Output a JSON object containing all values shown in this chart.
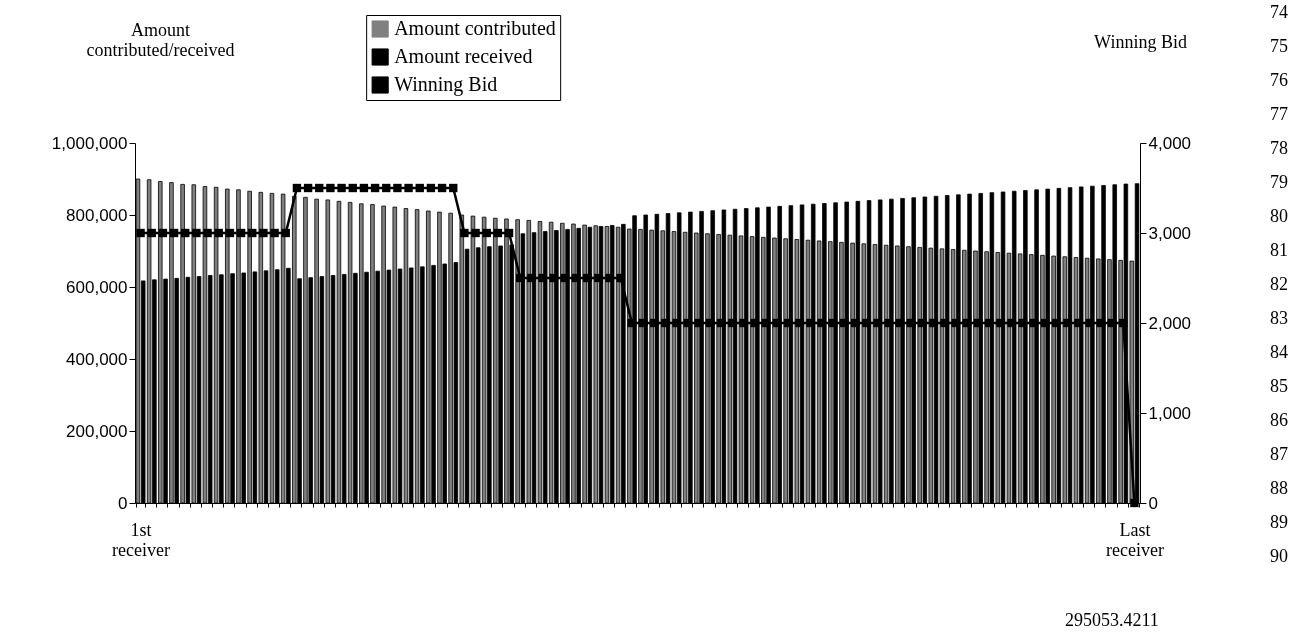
{
  "chart_data": {
    "type": "bar",
    "ylabel": "Amount contributed/received",
    "y2label": "Winning Bid",
    "categories": [
      "1st receiver",
      null,
      null,
      null,
      null,
      null,
      null,
      null,
      null,
      null,
      null,
      null,
      null,
      null,
      null,
      null,
      null,
      null,
      null,
      null,
      null,
      null,
      null,
      null,
      null,
      null,
      null,
      null,
      null,
      null,
      null,
      null,
      null,
      null,
      null,
      null,
      null,
      null,
      null,
      null,
      null,
      null,
      null,
      null,
      null,
      null,
      null,
      null,
      null,
      null,
      null,
      null,
      null,
      null,
      null,
      null,
      null,
      null,
      null,
      null,
      null,
      null,
      null,
      null,
      null,
      null,
      null,
      null,
      null,
      null,
      null,
      null,
      null,
      null,
      null,
      null,
      null,
      null,
      null,
      null,
      null,
      null,
      null,
      null,
      null,
      null,
      null,
      null,
      null,
      "Last receiver"
    ],
    "series": [
      {
        "name": "Amount contributed",
        "color": "#808080",
        "values": [
          900000,
          898000,
          893000,
          890000,
          885000,
          884000,
          879000,
          877000,
          872000,
          870000,
          866000,
          863000,
          860000,
          858000,
          852000,
          849000,
          844000,
          842000,
          838000,
          835000,
          831000,
          829000,
          825000,
          822000,
          818000,
          815000,
          811000,
          808000,
          805000,
          800000,
          797000,
          794000,
          791000,
          789000,
          787000,
          785000,
          782000,
          780000,
          777000,
          775000,
          772000,
          770000,
          768000,
          766000,
          761000,
          760000,
          758000,
          756000,
          754000,
          752000,
          750000,
          748000,
          746000,
          744000,
          742000,
          740000,
          738000,
          736000,
          734000,
          732000,
          730000,
          728000,
          726000,
          724000,
          722000,
          720000,
          718000,
          716000,
          714000,
          712000,
          710000,
          708000,
          706000,
          704000,
          702000,
          700000,
          698000,
          696000,
          694000,
          692000,
          690000,
          688000,
          686000,
          684000,
          682000,
          680000,
          678000,
          676000,
          674000,
          672000
        ]
      },
      {
        "name": "Amount received",
        "color": "#000000",
        "values": [
          617000,
          620000,
          622000,
          624000,
          627000,
          629000,
          632000,
          634000,
          637000,
          639000,
          642000,
          645000,
          648000,
          652000,
          623000,
          626000,
          629000,
          632000,
          635000,
          638000,
          641000,
          644000,
          647000,
          650000,
          653000,
          656000,
          660000,
          664000,
          668000,
          705000,
          709000,
          712000,
          714000,
          717000,
          748000,
          751000,
          754000,
          757000,
          760000,
          763000,
          766000,
          768000,
          771000,
          774000,
          798000,
          800000,
          802000,
          804000,
          806000,
          808000,
          810000,
          812000,
          814000,
          816000,
          818000,
          820000,
          822000,
          824000,
          826000,
          828000,
          830000,
          832000,
          834000,
          836000,
          838000,
          840000,
          842000,
          844000,
          846000,
          848000,
          850000,
          852000,
          854000,
          856000,
          858000,
          860000,
          862000,
          864000,
          866000,
          868000,
          870000,
          872000,
          874000,
          876000,
          878000,
          880000,
          882000,
          884000,
          886000,
          887000
        ]
      },
      {
        "name": "Winning Bid",
        "type": "line",
        "axis": "y2",
        "color": "#000000",
        "values": [
          3000,
          3000,
          3000,
          3000,
          3000,
          3000,
          3000,
          3000,
          3000,
          3000,
          3000,
          3000,
          3000,
          3000,
          3500,
          3500,
          3500,
          3500,
          3500,
          3500,
          3500,
          3500,
          3500,
          3500,
          3500,
          3500,
          3500,
          3500,
          3500,
          3000,
          3000,
          3000,
          3000,
          3000,
          2500,
          2500,
          2500,
          2500,
          2500,
          2500,
          2500,
          2500,
          2500,
          2500,
          2000,
          2000,
          2000,
          2000,
          2000,
          2000,
          2000,
          2000,
          2000,
          2000,
          2000,
          2000,
          2000,
          2000,
          2000,
          2000,
          2000,
          2000,
          2000,
          2000,
          2000,
          2000,
          2000,
          2000,
          2000,
          2000,
          2000,
          2000,
          2000,
          2000,
          2000,
          2000,
          2000,
          2000,
          2000,
          2000,
          2000,
          2000,
          2000,
          2000,
          2000,
          2000,
          2000,
          2000,
          2000,
          0
        ]
      }
    ],
    "ylim": [
      0,
      1000000
    ],
    "yticks": [
      0,
      {
        "value": 200000,
        "label": "200,000"
      },
      {
        "value": 400000,
        "label": "400,000"
      },
      {
        "value": 600000,
        "label": "600,000"
      },
      {
        "value": 800000,
        "label": "800,000"
      },
      {
        "value": 1000000,
        "label": "1,000,000"
      }
    ],
    "y2lim": [
      0,
      4000
    ],
    "y2ticks": [
      0,
      {
        "value": 1000,
        "label": "1,000"
      },
      {
        "value": 2000,
        "label": "2,000"
      },
      {
        "value": 3000,
        "label": "3,000"
      },
      {
        "value": 4000,
        "label": "4,000"
      }
    ],
    "marker": "square",
    "line_style": "solid",
    "legend": "top",
    "grid": false,
    "annotations": [
      "295053.4211",
      "74",
      "75",
      "76",
      "77",
      "78",
      "79",
      "80",
      "81",
      "82",
      "83",
      "84",
      "85",
      "86",
      "87",
      "88",
      "89",
      "90"
    ]
  }
}
